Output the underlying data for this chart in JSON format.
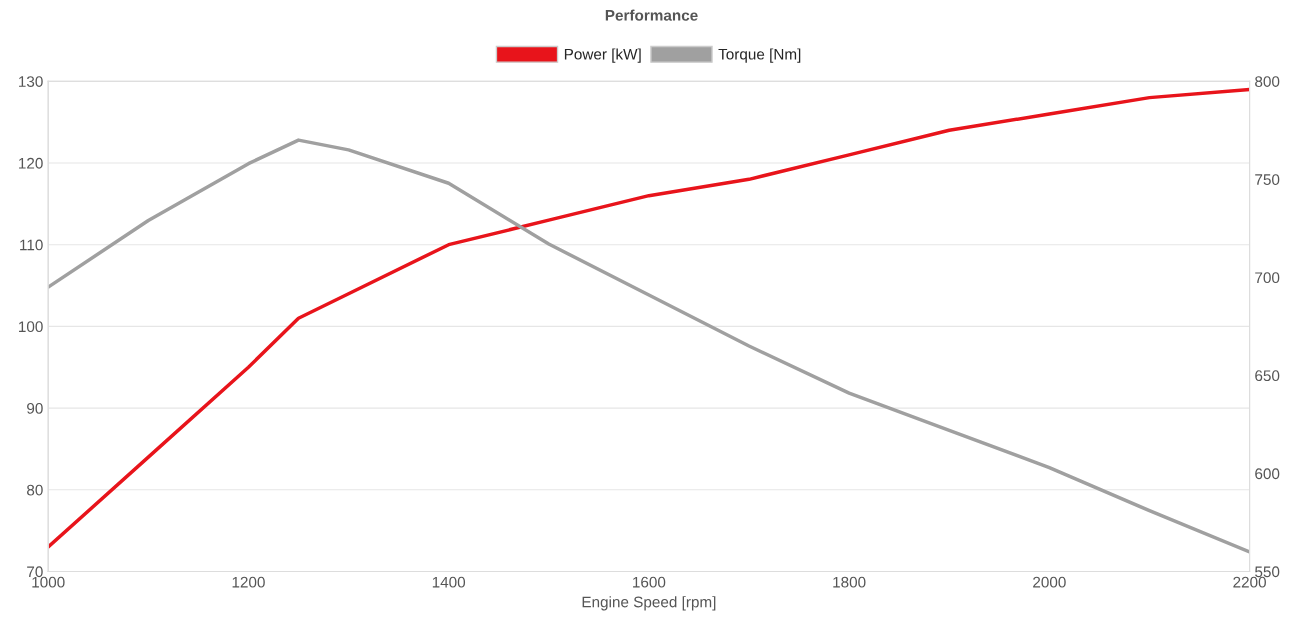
{
  "chart_data": {
    "type": "line",
    "title": "Performance",
    "xlabel": "Engine Speed [rpm]",
    "x": [
      1000,
      1100,
      1200,
      1250,
      1300,
      1400,
      1500,
      1600,
      1700,
      1800,
      1900,
      2000,
      2100,
      2200
    ],
    "series": [
      {
        "name": "Power [kW]",
        "color": "#e8141b",
        "values": [
          73,
          84,
          95,
          101,
          104,
          110,
          113,
          116,
          118,
          121,
          124,
          126,
          128,
          129
        ]
      },
      {
        "name": "Torque [Nm]",
        "color": "#a0a0a0",
        "axis": "y2",
        "values": [
          695,
          729,
          758,
          770,
          765,
          748,
          717,
          691,
          665,
          641,
          622,
          603,
          581,
          560
        ]
      }
    ],
    "xlim": [
      1000,
      2200
    ],
    "xticks": [
      1000,
      1200,
      1400,
      1600,
      1800,
      2000,
      2200
    ],
    "ylim": [
      70,
      130
    ],
    "yticks": [
      70,
      80,
      90,
      100,
      110,
      120,
      130
    ],
    "y2lim": [
      550,
      800
    ],
    "y2ticks": [
      550,
      600,
      650,
      700,
      750,
      800
    ],
    "grid": "y",
    "legend": "top",
    "marker": "none",
    "line_style": "solid"
  }
}
